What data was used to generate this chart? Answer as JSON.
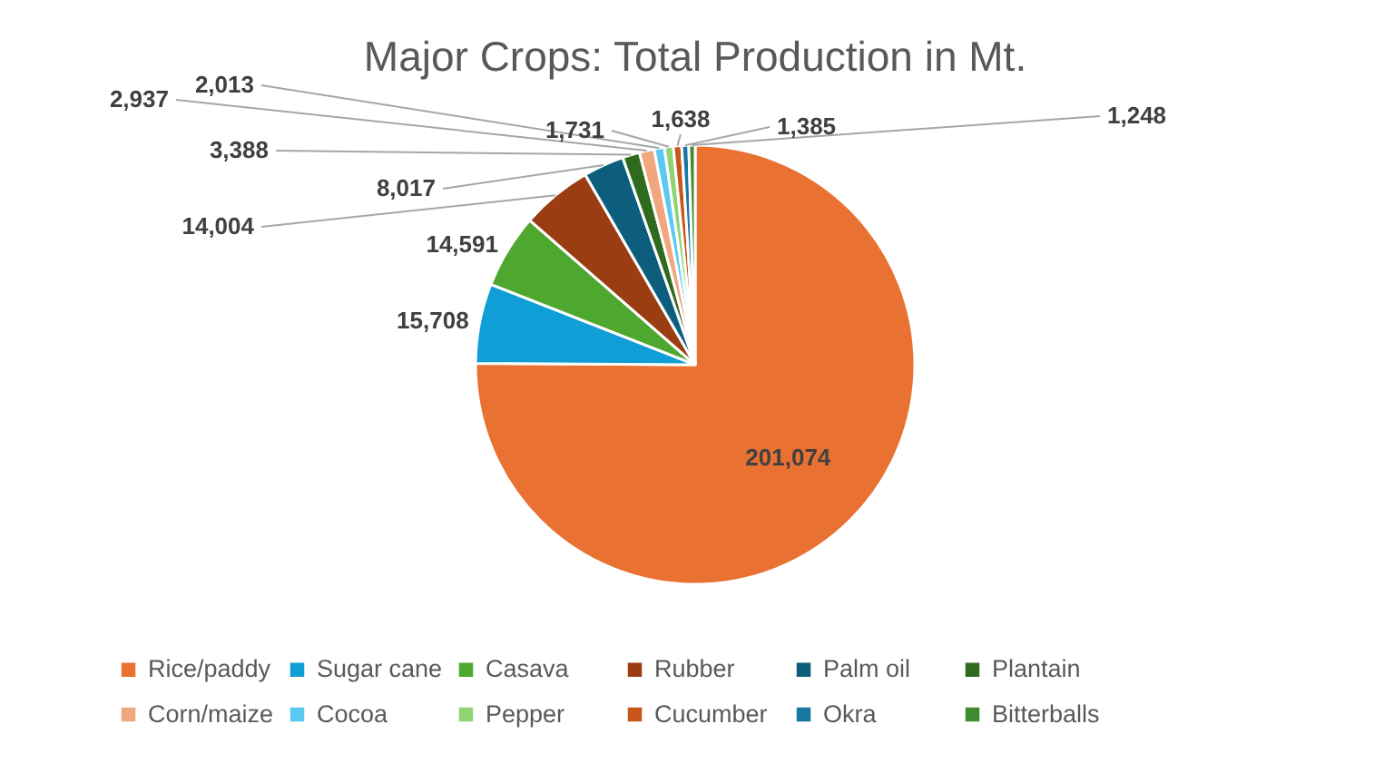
{
  "chart_data": {
    "type": "pie",
    "title": "Major Crops: Total Production in Mt.",
    "categories": [
      "Rice/paddy",
      "Sugar cane",
      "Casava",
      "Rubber",
      "Palm oil",
      "Plantain",
      "Corn/maize",
      "Cocoa",
      "Pepper",
      "Cucumber",
      "Okra",
      "Bitterballs"
    ],
    "values": [
      201074,
      15708,
      14591,
      14004,
      8017,
      3388,
      2937,
      2013,
      1731,
      1638,
      1385,
      1248
    ],
    "colors": [
      "#e97132",
      "#0f9ed5",
      "#4ea72e",
      "#9b3d13",
      "#0d5e7d",
      "#2f6b1e",
      "#f0a77e",
      "#5bc8f0",
      "#8ed473",
      "#c8561c",
      "#1777a0",
      "#3f8b2f"
    ],
    "value_labels": [
      "201,074",
      "15,708",
      "14,591",
      "14,004",
      "8,017",
      "3,388",
      "2,937",
      "2,013",
      "1,731",
      "1,638",
      "1,385",
      "1,248"
    ],
    "legend": "bottom"
  }
}
